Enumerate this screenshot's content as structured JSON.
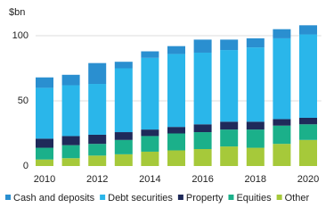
{
  "chart_data": {
    "type": "stacked-bar",
    "ylabel": "$bn",
    "x": [
      2010,
      2011,
      2012,
      2013,
      2014,
      2015,
      2016,
      2017,
      2018,
      2019,
      2020
    ],
    "xlim": [
      2009.5,
      2020.5
    ],
    "xticks": [
      2010,
      2012,
      2014,
      2016,
      2018,
      2020
    ],
    "ylim": [
      0,
      110
    ],
    "yticks": [
      0,
      50,
      100
    ],
    "grid": true,
    "series": [
      {
        "name": "Cash and deposits",
        "color": "#2a8fd0",
        "values": [
          8,
          8,
          16,
          5,
          5,
          6,
          10,
          8,
          7,
          7,
          7
        ]
      },
      {
        "name": "Debt securities",
        "color": "#2ab6ea",
        "values": [
          39,
          39,
          39,
          49,
          55,
          56,
          55,
          55,
          57,
          62,
          64
        ]
      },
      {
        "name": "Property",
        "color": "#1f2a5a",
        "values": [
          7,
          7,
          7,
          6,
          5,
          5,
          6,
          6,
          6,
          5,
          5
        ]
      },
      {
        "name": "Equities",
        "color": "#1bb08a",
        "values": [
          9,
          10,
          9,
          11,
          12,
          13,
          13,
          13,
          14,
          14,
          12
        ]
      },
      {
        "name": "Other",
        "color": "#a6c93a",
        "values": [
          5,
          6,
          8,
          9,
          11,
          12,
          13,
          15,
          14,
          17,
          20
        ]
      }
    ]
  }
}
